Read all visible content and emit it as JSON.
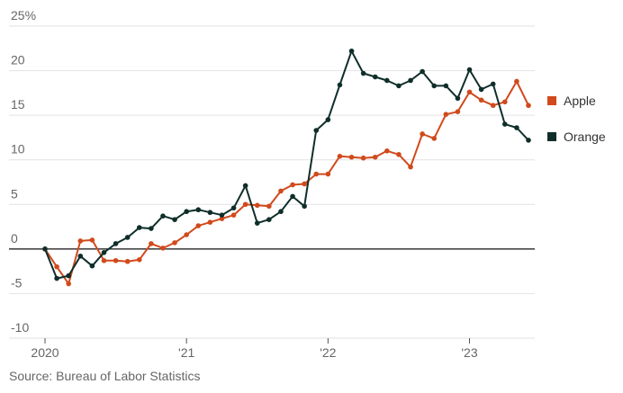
{
  "chart_data": {
    "type": "line",
    "xlim": [
      0,
      41
    ],
    "ylim": [
      -10,
      25
    ],
    "yticks": [
      {
        "value": 25,
        "label": "25%"
      },
      {
        "value": 20,
        "label": "20"
      },
      {
        "value": 15,
        "label": "15"
      },
      {
        "value": 10,
        "label": "10"
      },
      {
        "value": 5,
        "label": "5"
      },
      {
        "value": 0,
        "label": "0"
      },
      {
        "value": -5,
        "label": "-5"
      },
      {
        "value": -10,
        "label": "-10"
      }
    ],
    "xticks": [
      {
        "value": 0,
        "label": "2020"
      },
      {
        "value": 12,
        "label": "'21"
      },
      {
        "value": 24,
        "label": "'22"
      },
      {
        "value": 36,
        "label": "'23"
      }
    ],
    "series": [
      {
        "name": "Apple",
        "color": "#d04a1c",
        "values": [
          0,
          -2,
          -3.9,
          0.9,
          1.0,
          -1.3,
          -1.3,
          -1.4,
          -1.2,
          0.6,
          0.1,
          0.7,
          1.6,
          2.6,
          3.0,
          3.4,
          3.8,
          5.0,
          4.9,
          4.8,
          6.5,
          7.2,
          7.3,
          8.4,
          8.4,
          10.4,
          10.3,
          10.2,
          10.3,
          11.0,
          10.6,
          9.2,
          12.9,
          12.4,
          15.1,
          15.4,
          17.6,
          16.7,
          16.1,
          16.5,
          18.8,
          16.1
        ]
      },
      {
        "name": "Orange",
        "color": "#0f2e2a",
        "values": [
          0,
          -3.3,
          -3.0,
          -0.8,
          -1.9,
          -0.4,
          0.6,
          1.3,
          2.4,
          2.3,
          3.7,
          3.3,
          4.2,
          4.4,
          4.1,
          3.8,
          4.6,
          7.1,
          2.9,
          3.3,
          4.2,
          5.9,
          4.8,
          13.3,
          14.5,
          18.4,
          22.2,
          19.7,
          19.3,
          18.9,
          18.3,
          18.9,
          19.9,
          18.3,
          18.3,
          16.9,
          20.1,
          17.9,
          18.5,
          14.0,
          13.6,
          12.2
        ]
      }
    ],
    "legend": "right",
    "grid": true,
    "source": "Source: Bureau of Labor Statistics"
  }
}
